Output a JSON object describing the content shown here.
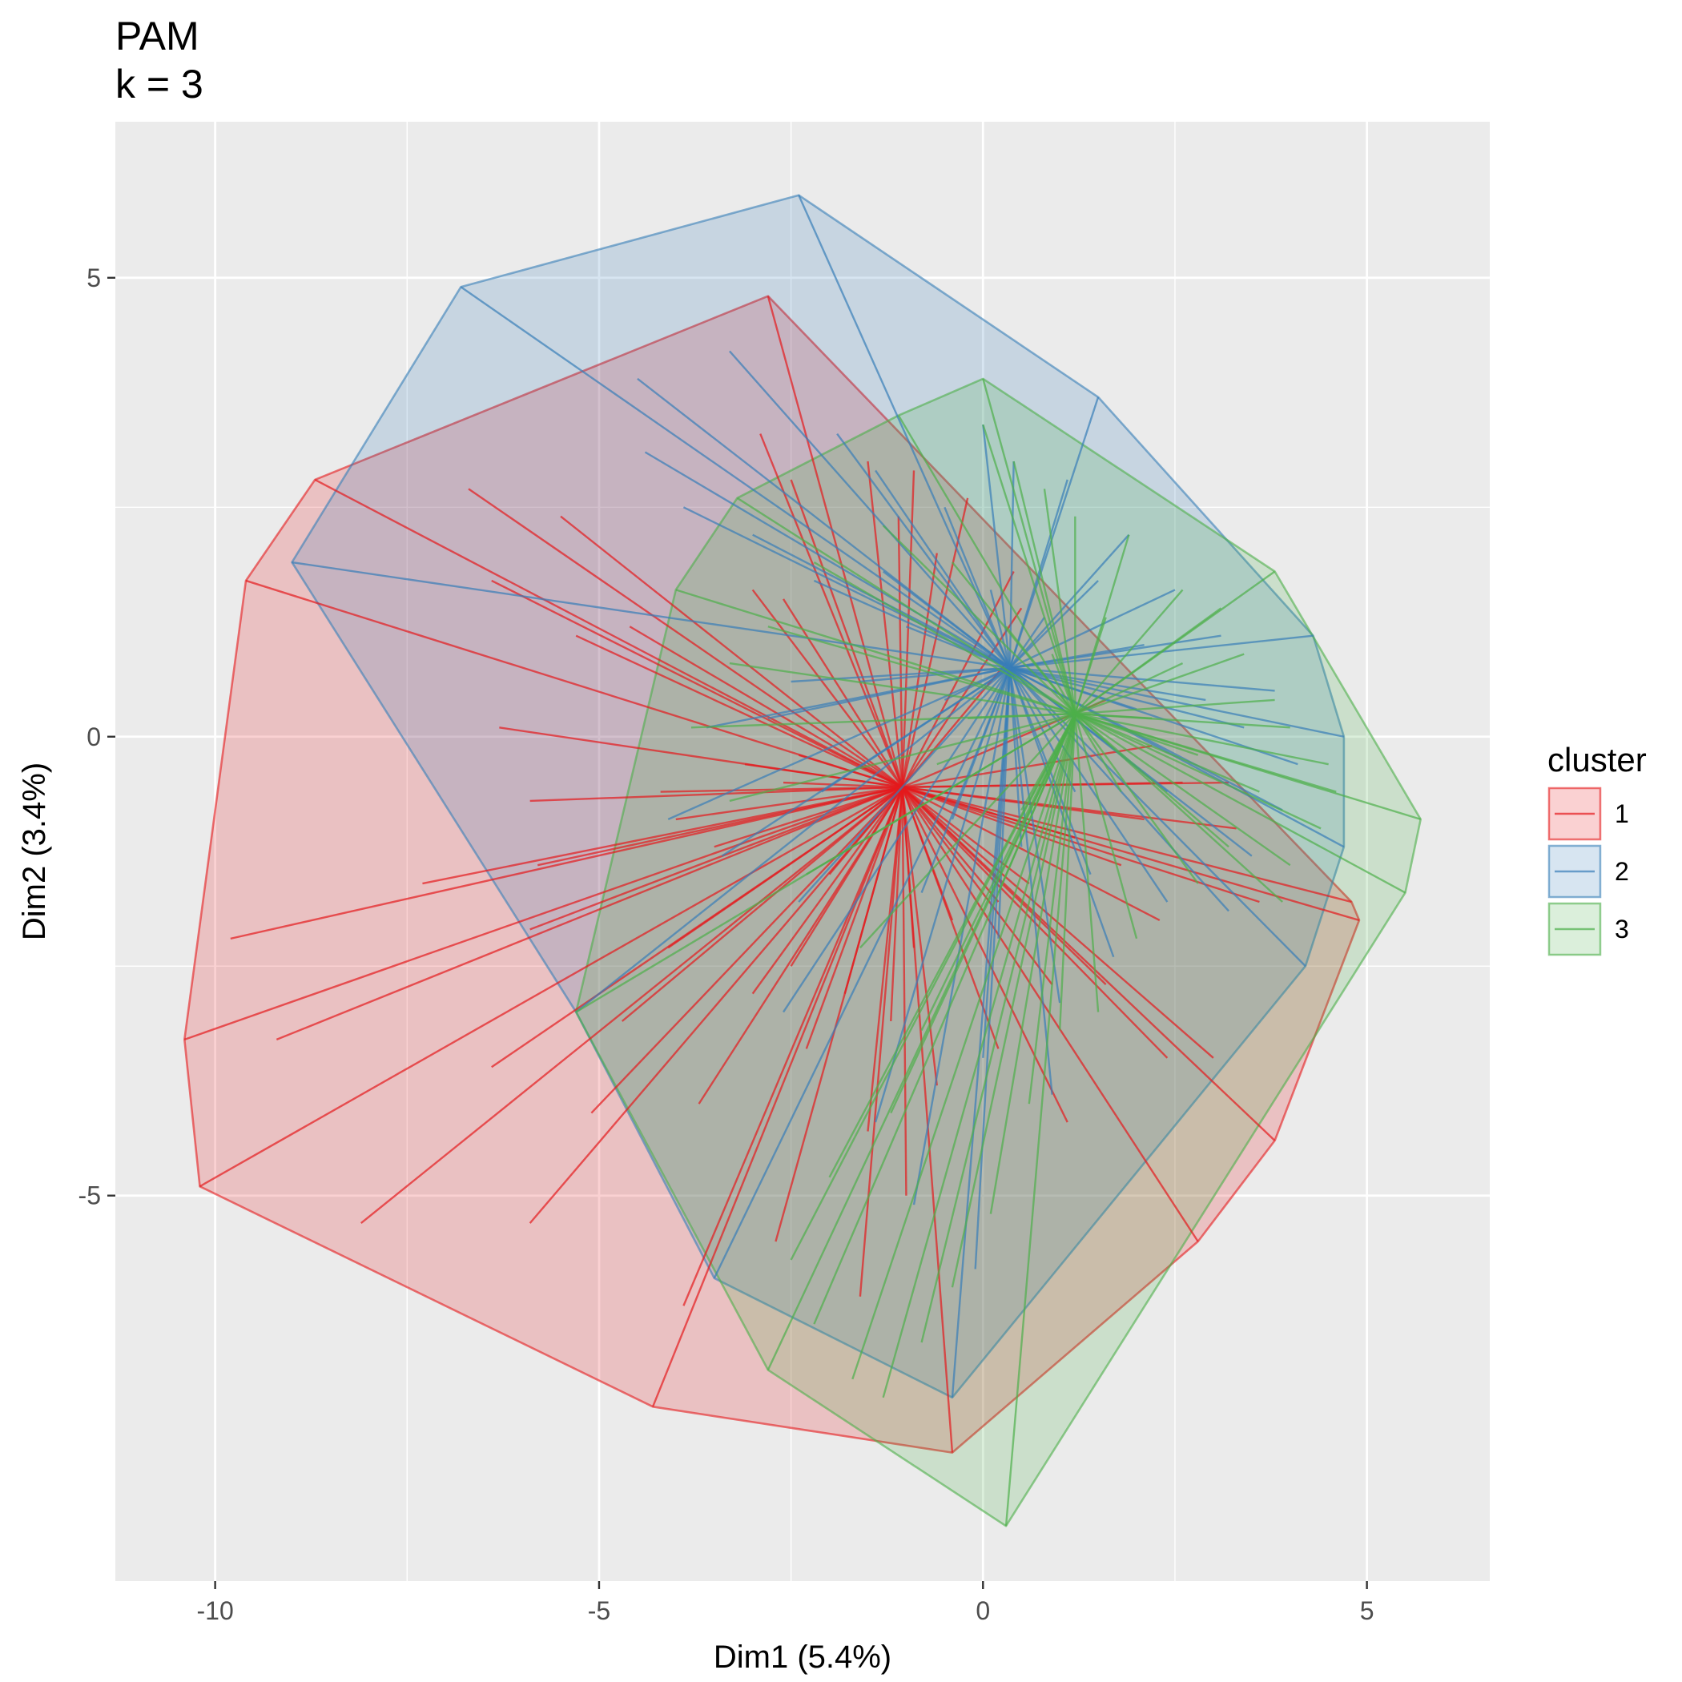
{
  "chart_data": {
    "type": "scatter",
    "subtype": "cluster-hull-star",
    "title": "PAM",
    "subtitle": "k = 3",
    "xlabel": "Dim1 (5.4%)",
    "ylabel": "Dim2 (3.4%)",
    "xlim": [
      -11.3,
      6.6
    ],
    "ylim": [
      -9.2,
      6.7
    ],
    "xticks": [
      -10,
      -5,
      0,
      5
    ],
    "xtick_labels": [
      "-10",
      "-5",
      "0",
      "5"
    ],
    "yticks": [
      -5,
      0,
      5
    ],
    "ytick_labels": [
      "-5",
      "0",
      "5"
    ],
    "grid": true,
    "legend": {
      "title": "cluster",
      "position": "right",
      "entries": [
        "1",
        "2",
        "3"
      ]
    },
    "colors": {
      "panel": "#EBEBEB",
      "grid": "#FFFFFF",
      "1": "#E41A1C",
      "2": "#377EB8",
      "3": "#4DAF4A"
    },
    "clusters": [
      {
        "name": "1",
        "medoid": [
          -1.05,
          -0.55
        ],
        "hull": [
          [
            -8.7,
            2.8
          ],
          [
            -2.8,
            4.8
          ],
          [
            4.8,
            -1.8
          ],
          [
            4.9,
            -2.0
          ],
          [
            3.8,
            -4.4
          ],
          [
            2.8,
            -5.5
          ],
          [
            -0.4,
            -7.8
          ],
          [
            -4.3,
            -7.3
          ],
          [
            -10.2,
            -4.9
          ],
          [
            -10.4,
            -3.3
          ],
          [
            -9.6,
            1.7
          ]
        ],
        "points": [
          [
            -8.7,
            2.8
          ],
          [
            -2.8,
            4.8
          ],
          [
            4.8,
            -1.8
          ],
          [
            4.9,
            -2.0
          ],
          [
            3.8,
            -4.4
          ],
          [
            2.8,
            -5.5
          ],
          [
            -0.4,
            -7.8
          ],
          [
            -4.3,
            -7.3
          ],
          [
            -10.2,
            -4.9
          ],
          [
            -10.4,
            -3.3
          ],
          [
            -9.6,
            1.7
          ],
          [
            -9.8,
            -2.2
          ],
          [
            -9.2,
            -3.3
          ],
          [
            -6.4,
            -3.6
          ],
          [
            -8.1,
            -5.3
          ],
          [
            -5.9,
            -5.3
          ],
          [
            -5.1,
            -4.1
          ],
          [
            -3.9,
            -6.2
          ],
          [
            -3.7,
            -4.0
          ],
          [
            -2.3,
            -3.4
          ],
          [
            -2.7,
            -5.5
          ],
          [
            -1.6,
            -6.1
          ],
          [
            -1.5,
            -4.3
          ],
          [
            -0.6,
            -3.8
          ],
          [
            0.2,
            -3.4
          ],
          [
            1.1,
            -4.2
          ],
          [
            2.4,
            -3.5
          ],
          [
            3.0,
            -3.5
          ],
          [
            2.3,
            -2.0
          ],
          [
            3.6,
            -1.8
          ],
          [
            1.8,
            -1.4
          ],
          [
            0.6,
            -1.6
          ],
          [
            -0.4,
            -2.0
          ],
          [
            -2.5,
            -2.5
          ],
          [
            -4.1,
            -2.3
          ],
          [
            -5.9,
            -2.1
          ],
          [
            -7.3,
            -1.6
          ],
          [
            -5.8,
            -1.4
          ],
          [
            -5.9,
            -0.7
          ],
          [
            -4.0,
            -0.9
          ],
          [
            -6.3,
            0.1
          ],
          [
            -3.1,
            -0.3
          ],
          [
            -2.4,
            -0.2
          ],
          [
            -5.3,
            1.1
          ],
          [
            -6.4,
            1.7
          ],
          [
            -4.6,
            1.2
          ],
          [
            -3.0,
            1.6
          ],
          [
            -2.6,
            1.5
          ],
          [
            -5.5,
            2.4
          ],
          [
            -6.7,
            2.7
          ],
          [
            -2.9,
            3.3
          ],
          [
            -2.5,
            2.8
          ],
          [
            -1.5,
            3.0
          ],
          [
            -1.1,
            2.4
          ],
          [
            -0.9,
            2.9
          ],
          [
            -0.6,
            2.0
          ],
          [
            -0.2,
            2.6
          ],
          [
            0.4,
            1.8
          ],
          [
            0.5,
            1.4
          ],
          [
            0.3,
            0.8
          ],
          [
            1.6,
            0.4
          ],
          [
            2.2,
            -0.1
          ],
          [
            2.6,
            -0.5
          ],
          [
            3.2,
            -0.5
          ],
          [
            2.1,
            -0.9
          ],
          [
            3.3,
            -1.0
          ],
          [
            1.2,
            -1.1
          ],
          [
            0.2,
            -1.8
          ],
          [
            -1.2,
            -0.7
          ],
          [
            -2.6,
            -0.5
          ],
          [
            -3.5,
            -1.2
          ],
          [
            -4.2,
            -0.6
          ],
          [
            -2.0,
            -1.5
          ],
          [
            -1.8,
            -2.8
          ],
          [
            -3.0,
            -2.8
          ],
          [
            -0.9,
            -2.3
          ],
          [
            -1.2,
            -3.1
          ],
          [
            0.9,
            -2.7
          ],
          [
            1.6,
            -2.7
          ],
          [
            -4.7,
            -3.1
          ],
          [
            -1.0,
            -5.0
          ]
        ]
      },
      {
        "name": "2",
        "medoid": [
          0.35,
          0.75
        ],
        "hull": [
          [
            -6.8,
            4.9
          ],
          [
            -2.4,
            5.9
          ],
          [
            1.5,
            3.7
          ],
          [
            4.3,
            1.1
          ],
          [
            4.7,
            0.0
          ],
          [
            4.7,
            -1.2
          ],
          [
            4.2,
            -2.5
          ],
          [
            -0.4,
            -7.2
          ],
          [
            -3.5,
            -5.9
          ],
          [
            -5.3,
            -3.0
          ],
          [
            -9.0,
            1.9
          ]
        ],
        "points": [
          [
            -6.8,
            4.9
          ],
          [
            -2.4,
            5.9
          ],
          [
            1.5,
            3.7
          ],
          [
            4.3,
            1.1
          ],
          [
            4.7,
            0.0
          ],
          [
            4.7,
            -1.2
          ],
          [
            4.2,
            -2.5
          ],
          [
            -0.4,
            -7.2
          ],
          [
            -3.5,
            -5.9
          ],
          [
            -5.3,
            -3.0
          ],
          [
            -9.0,
            1.9
          ],
          [
            -4.5,
            3.9
          ],
          [
            -3.3,
            4.2
          ],
          [
            -4.4,
            3.1
          ],
          [
            -3.9,
            2.5
          ],
          [
            -3.0,
            2.2
          ],
          [
            -1.9,
            3.3
          ],
          [
            -1.4,
            2.9
          ],
          [
            -0.5,
            2.5
          ],
          [
            0.0,
            3.4
          ],
          [
            0.4,
            3.0
          ],
          [
            1.1,
            2.8
          ],
          [
            1.9,
            2.2
          ],
          [
            2.5,
            1.6
          ],
          [
            3.1,
            1.1
          ],
          [
            3.8,
            0.5
          ],
          [
            4.1,
            -0.3
          ],
          [
            3.9,
            -0.8
          ],
          [
            3.5,
            -1.3
          ],
          [
            2.4,
            -1.8
          ],
          [
            1.7,
            -2.4
          ],
          [
            1.0,
            -2.9
          ],
          [
            0.9,
            -3.9
          ],
          [
            0.0,
            -3.5
          ],
          [
            -0.1,
            -5.8
          ],
          [
            -0.9,
            -5.1
          ],
          [
            -1.4,
            -4.2
          ],
          [
            -2.6,
            -3.0
          ],
          [
            -2.4,
            -1.8
          ],
          [
            -3.4,
            -1.3
          ],
          [
            -4.1,
            -0.9
          ],
          [
            -3.6,
            0.1
          ],
          [
            -2.8,
            0.2
          ],
          [
            -2.1,
            -0.6
          ],
          [
            -2.5,
            0.6
          ],
          [
            -1.3,
            1.8
          ],
          [
            -1.0,
            1.2
          ],
          [
            -0.5,
            0.4
          ],
          [
            0.1,
            1.6
          ],
          [
            0.8,
            1.3
          ],
          [
            1.5,
            1.7
          ],
          [
            2.1,
            1.0
          ],
          [
            2.9,
            0.4
          ],
          [
            3.4,
            0.1
          ],
          [
            2.4,
            -0.6
          ],
          [
            1.2,
            -0.6
          ],
          [
            0.5,
            -1.2
          ],
          [
            -0.4,
            -0.9
          ],
          [
            -0.8,
            -1.7
          ],
          [
            0.2,
            -2.2
          ],
          [
            1.4,
            -1.5
          ],
          [
            3.2,
            -1.9
          ],
          [
            -1.6,
            0.6
          ],
          [
            -2.2,
            1.7
          ],
          [
            2.0,
            0.3
          ]
        ]
      },
      {
        "name": "3",
        "medoid": [
          1.2,
          0.25
        ],
        "hull": [
          [
            0.0,
            3.9
          ],
          [
            3.8,
            1.8
          ],
          [
            5.7,
            -0.9
          ],
          [
            5.5,
            -1.7
          ],
          [
            0.3,
            -8.6
          ],
          [
            -2.8,
            -6.9
          ],
          [
            -5.3,
            -3.0
          ],
          [
            -4.0,
            1.6
          ],
          [
            -3.2,
            2.6
          ],
          [
            -1.1,
            3.5
          ]
        ],
        "points": [
          [
            0.0,
            3.9
          ],
          [
            3.8,
            1.8
          ],
          [
            5.7,
            -0.9
          ],
          [
            5.5,
            -1.7
          ],
          [
            0.3,
            -8.6
          ],
          [
            -2.8,
            -6.9
          ],
          [
            -5.3,
            -3.0
          ],
          [
            -4.0,
            1.6
          ],
          [
            -3.2,
            2.6
          ],
          [
            -1.1,
            3.5
          ],
          [
            0.0,
            3.4
          ],
          [
            0.4,
            3.0
          ],
          [
            0.8,
            2.7
          ],
          [
            1.2,
            2.4
          ],
          [
            1.9,
            2.2
          ],
          [
            2.6,
            1.6
          ],
          [
            3.1,
            1.4
          ],
          [
            3.4,
            0.9
          ],
          [
            3.8,
            0.4
          ],
          [
            4.0,
            0.1
          ],
          [
            4.5,
            -0.3
          ],
          [
            4.6,
            -0.6
          ],
          [
            4.4,
            -1.0
          ],
          [
            4.0,
            -1.4
          ],
          [
            3.9,
            -1.8
          ],
          [
            3.2,
            -1.2
          ],
          [
            2.8,
            -1.6
          ],
          [
            2.0,
            -2.2
          ],
          [
            1.5,
            -3.0
          ],
          [
            1.0,
            -3.2
          ],
          [
            0.6,
            -4.0
          ],
          [
            0.1,
            -5.2
          ],
          [
            -0.4,
            -6.0
          ],
          [
            -0.8,
            -6.6
          ],
          [
            -1.3,
            -7.2
          ],
          [
            -1.7,
            -7.0
          ],
          [
            -2.2,
            -6.4
          ],
          [
            -2.5,
            -5.7
          ],
          [
            -2.0,
            -4.8
          ],
          [
            -1.2,
            -4.1
          ],
          [
            -0.8,
            -3.2
          ],
          [
            -1.6,
            -2.3
          ],
          [
            -2.3,
            -1.5
          ],
          [
            -3.3,
            -0.7
          ],
          [
            -3.8,
            0.1
          ],
          [
            -3.3,
            0.8
          ],
          [
            -2.8,
            1.2
          ],
          [
            -2.2,
            1.9
          ],
          [
            -1.3,
            2.3
          ],
          [
            -0.4,
            1.9
          ],
          [
            0.3,
            1.2
          ],
          [
            0.9,
            0.9
          ],
          [
            2.2,
            0.2
          ],
          [
            2.8,
            -0.2
          ],
          [
            1.8,
            -0.6
          ],
          [
            0.5,
            -0.8
          ],
          [
            0.2,
            -1.7
          ],
          [
            -0.6,
            -0.3
          ],
          [
            3.6,
            -0.6
          ],
          [
            2.6,
            0.8
          ],
          [
            1.6,
            1.3
          ],
          [
            -0.2,
            0.2
          ]
        ]
      }
    ]
  }
}
